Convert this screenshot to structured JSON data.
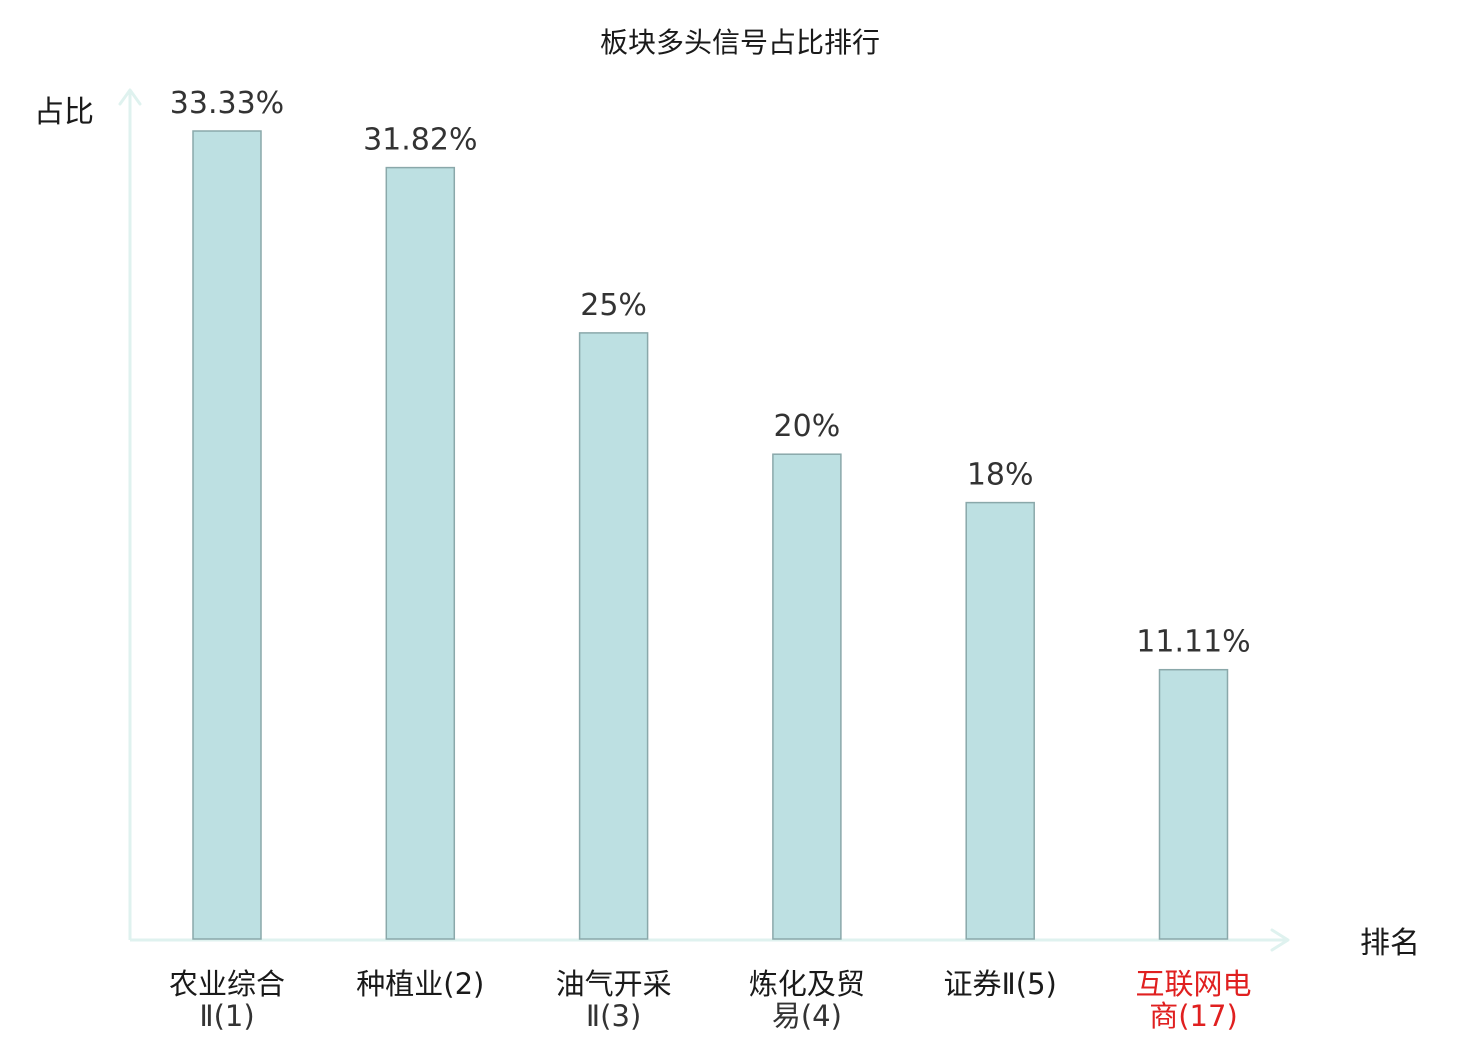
{
  "chart_data": {
    "type": "bar",
    "title": "板块多头信号占比排行",
    "xlabel": "排名",
    "ylabel": "占比",
    "ylim": [
      0,
      33.33
    ],
    "grid": false,
    "legend": "none",
    "categories": [
      {
        "line1": "农业综合",
        "line2": "Ⅱ(1)",
        "highlight": false
      },
      {
        "line1": "种植业(2)",
        "line2": "",
        "highlight": false
      },
      {
        "line1": "油气开采",
        "line2": "Ⅱ(3)",
        "highlight": false
      },
      {
        "line1": "炼化及贸",
        "line2": "易(4)",
        "highlight": false
      },
      {
        "line1": "证券Ⅱ(5)",
        "line2": "",
        "highlight": false
      },
      {
        "line1": "互联网电",
        "line2": "商(17)",
        "highlight": true
      }
    ],
    "values": [
      33.33,
      31.82,
      25,
      20,
      18,
      11.11
    ],
    "value_labels": [
      "33.33%",
      "31.82%",
      "25%",
      "20%",
      "18%",
      "11.11%"
    ],
    "colors": {
      "bar_fill": "#bde0e2",
      "bar_stroke": "#8aa8aa",
      "axis": "#dff2ef",
      "highlight_text": "#e02020"
    }
  }
}
